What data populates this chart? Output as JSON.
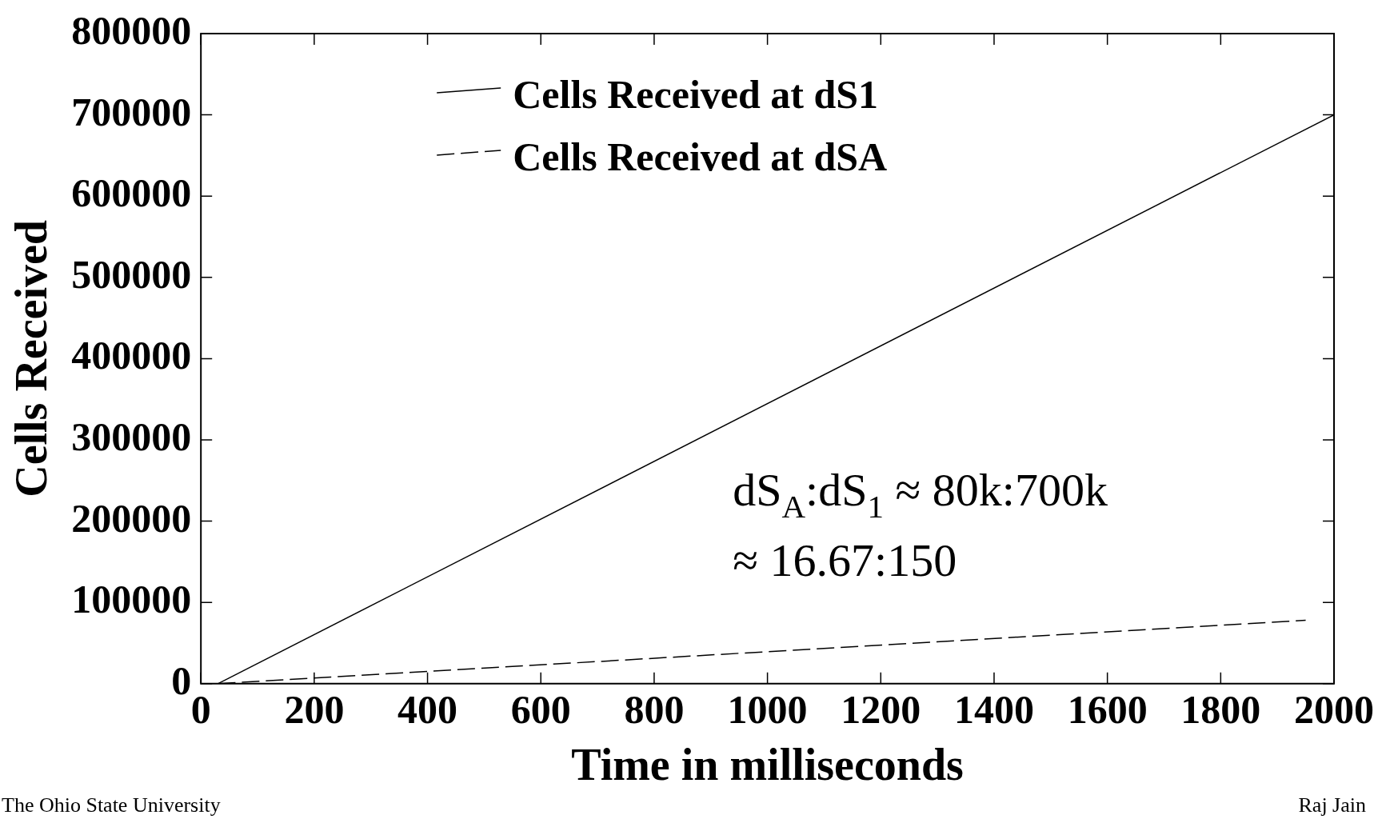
{
  "chart_data": {
    "type": "line",
    "xlabel": "Time in milliseconds",
    "ylabel": "Cells Received",
    "xlim": [
      0,
      2000
    ],
    "xticks": [
      0,
      200,
      400,
      600,
      800,
      1000,
      1200,
      1400,
      1600,
      1800,
      2000
    ],
    "ylim": [
      0,
      800000
    ],
    "yticks": [
      0,
      100000,
      200000,
      300000,
      400000,
      500000,
      600000,
      700000,
      800000
    ],
    "grid": false,
    "legend": "top",
    "marker": "none",
    "series": [
      {
        "name": "Cells Received at dS1",
        "color": "#000000",
        "line_style": "solid",
        "x": [
          30,
          2000
        ],
        "values": [
          0,
          700000
        ]
      },
      {
        "name": "Cells Received at dSA",
        "color": "#000000",
        "line_style": "dashed",
        "x": [
          30,
          1950
        ],
        "values": [
          0,
          78000
        ]
      }
    ],
    "annotations": [
      "dS$_{A}$:dS$_{1}$ ≈ 80k:700k",
      "≈ 16.67:150",
      "The Ohio State University",
      "Raj Jain"
    ]
  }
}
